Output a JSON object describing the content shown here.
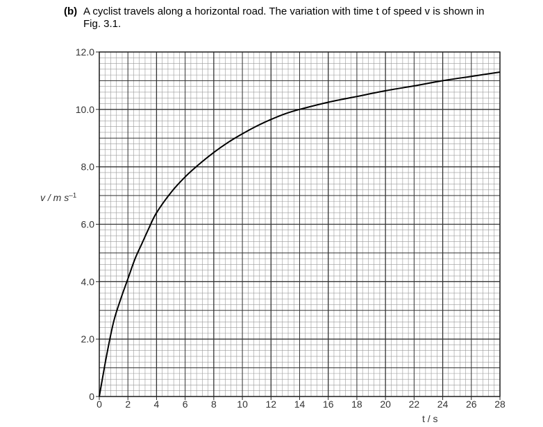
{
  "question": {
    "part_label": "(b)",
    "text_line1": "A cyclist travels along a horizontal road. The variation with time t of speed v is shown in",
    "text_line2": "Fig. 3.1."
  },
  "chart_data": {
    "type": "line",
    "title": "",
    "xlabel": "t / s",
    "ylabel": "v / m s",
    "ylabel_superscript": "–1",
    "xlim": [
      0,
      28
    ],
    "ylim": [
      0,
      12
    ],
    "x_ticks": [
      "0",
      "2",
      "4",
      "6",
      "8",
      "10",
      "12",
      "14",
      "16",
      "18",
      "20",
      "22",
      "24",
      "26",
      "28"
    ],
    "y_ticks": [
      "0",
      "2.0",
      "4.0",
      "6.0",
      "8.0",
      "10.0",
      "12.0"
    ],
    "grid": true,
    "series": [
      {
        "x": [
          0,
          0.5,
          1,
          1.5,
          2,
          2.5,
          3,
          3.5,
          4,
          5,
          6,
          7,
          8,
          9,
          10,
          11,
          12,
          13,
          14,
          16,
          18,
          20,
          22,
          24,
          26,
          28
        ],
        "y": [
          0,
          1.4,
          2.6,
          3.4,
          4.1,
          4.8,
          5.35,
          5.9,
          6.4,
          7.1,
          7.65,
          8.1,
          8.5,
          8.85,
          9.15,
          9.42,
          9.65,
          9.85,
          10.0,
          10.25,
          10.45,
          10.65,
          10.82,
          11.0,
          11.15,
          11.3
        ]
      }
    ],
    "colors": {
      "grid_major": "#333333",
      "grid_minor": "#999999",
      "curve": "#000000"
    }
  }
}
